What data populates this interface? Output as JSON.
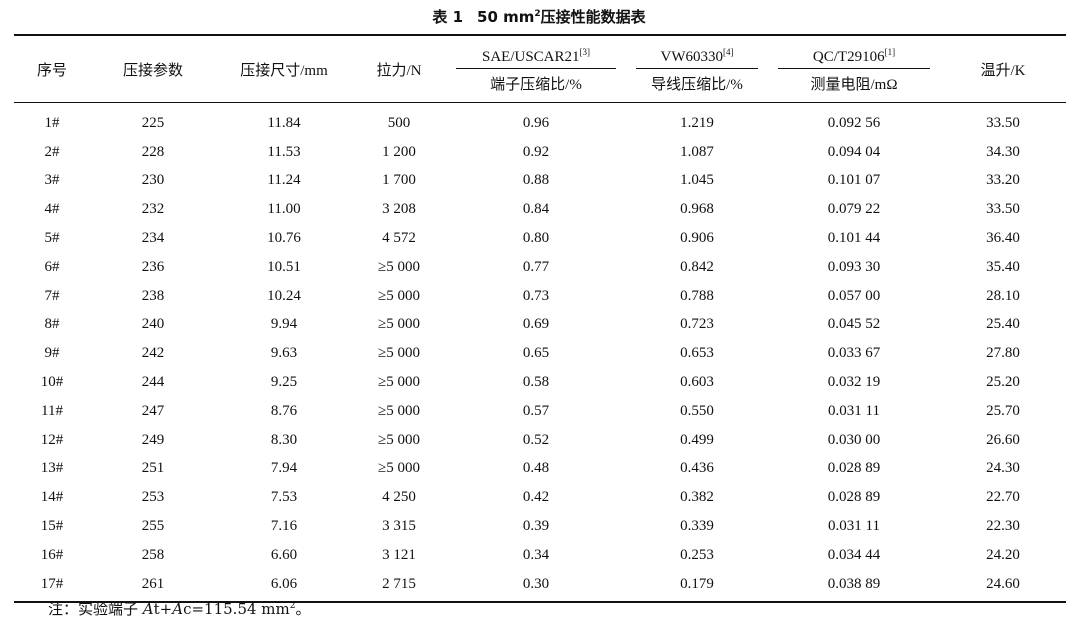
{
  "caption": {
    "label": "表 1",
    "text": "50 mm",
    "sup": "2",
    "tail": "压接性能数据表"
  },
  "columns": {
    "no": "序号",
    "crimp_param": "压接参数",
    "crimp_size": "压接尺寸/mm",
    "tension": "拉力/N",
    "sae": {
      "name": "SAE/USCAR21",
      "ref": "[3]",
      "sub": "端子压缩比/%"
    },
    "vw": {
      "name": "VW60330",
      "ref": "[4]",
      "sub": "导线压缩比/%"
    },
    "qc": {
      "name": "QC/T29106",
      "ref": "[1]",
      "sub": "测量电阻/mΩ"
    },
    "temp": "温升/K"
  },
  "rows": [
    [
      "1#",
      "225",
      "11.84",
      "500",
      "0.96",
      "1.219",
      "0.092 56",
      "33.50"
    ],
    [
      "2#",
      "228",
      "11.53",
      "1 200",
      "0.92",
      "1.087",
      "0.094 04",
      "34.30"
    ],
    [
      "3#",
      "230",
      "11.24",
      "1 700",
      "0.88",
      "1.045",
      "0.101 07",
      "33.20"
    ],
    [
      "4#",
      "232",
      "11.00",
      "3 208",
      "0.84",
      "0.968",
      "0.079 22",
      "33.50"
    ],
    [
      "5#",
      "234",
      "10.76",
      "4 572",
      "0.80",
      "0.906",
      "0.101 44",
      "36.40"
    ],
    [
      "6#",
      "236",
      "10.51",
      "≥5 000",
      "0.77",
      "0.842",
      "0.093 30",
      "35.40"
    ],
    [
      "7#",
      "238",
      "10.24",
      "≥5 000",
      "0.73",
      "0.788",
      "0.057 00",
      "28.10"
    ],
    [
      "8#",
      "240",
      "9.94",
      "≥5 000",
      "0.69",
      "0.723",
      "0.045 52",
      "25.40"
    ],
    [
      "9#",
      "242",
      "9.63",
      "≥5 000",
      "0.65",
      "0.653",
      "0.033 67",
      "27.80"
    ],
    [
      "10#",
      "244",
      "9.25",
      "≥5 000",
      "0.58",
      "0.603",
      "0.032 19",
      "25.20"
    ],
    [
      "11#",
      "247",
      "8.76",
      "≥5 000",
      "0.57",
      "0.550",
      "0.031 11",
      "25.70"
    ],
    [
      "12#",
      "249",
      "8.30",
      "≥5 000",
      "0.52",
      "0.499",
      "0.030 00",
      "26.60"
    ],
    [
      "13#",
      "251",
      "7.94",
      "≥5 000",
      "0.48",
      "0.436",
      "0.028 89",
      "24.30"
    ],
    [
      "14#",
      "253",
      "7.53",
      "4 250",
      "0.42",
      "0.382",
      "0.028 89",
      "22.70"
    ],
    [
      "15#",
      "255",
      "7.16",
      "3 315",
      "0.39",
      "0.339",
      "0.031 11",
      "22.30"
    ],
    [
      "16#",
      "258",
      "6.60",
      "3 121",
      "0.34",
      "0.253",
      "0.034 44",
      "24.20"
    ],
    [
      "17#",
      "261",
      "6.06",
      "2 715",
      "0.30",
      "0.179",
      "0.038 89",
      "24.60"
    ]
  ],
  "note": {
    "prefix": "注：实验端子 ",
    "a1": "A",
    "t": "t+",
    "a2": "A",
    "rest": "c=115.54 mm",
    "sup": "2",
    "end": "。"
  }
}
